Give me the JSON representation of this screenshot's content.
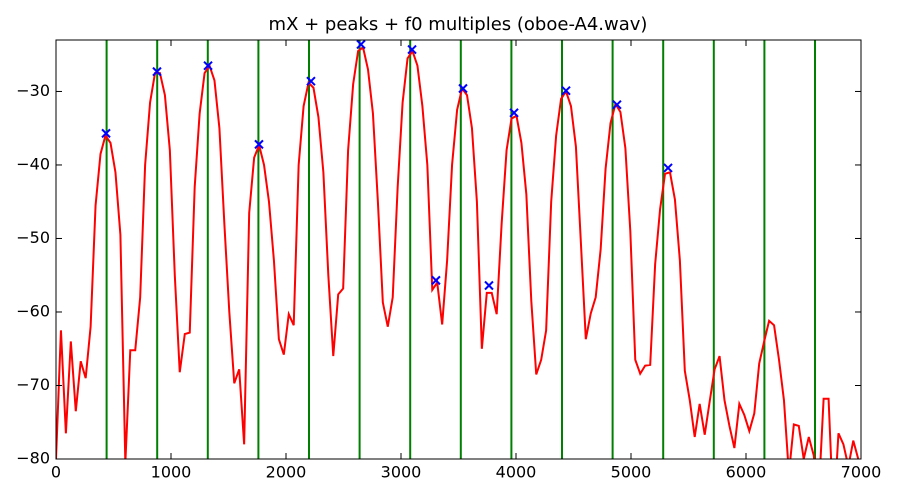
{
  "chart_data": {
    "type": "line",
    "title": "mX + peaks + f0 multiples (oboe-A4.wav)",
    "xlim": [
      0,
      7000
    ],
    "ylim": [
      -80,
      -23
    ],
    "xticks": [
      0,
      1000,
      2000,
      3000,
      4000,
      5000,
      6000,
      7000
    ],
    "yticks": [
      {
        "value": -80,
        "label": "−80"
      },
      {
        "value": -70,
        "label": "−70"
      },
      {
        "value": -60,
        "label": "−60"
      },
      {
        "value": -50,
        "label": "−50"
      },
      {
        "value": -40,
        "label": "−40"
      },
      {
        "value": -30,
        "label": "−30"
      }
    ],
    "series": [
      {
        "type": "vline",
        "color": "#008000",
        "x": [
          440,
          880,
          1320,
          1760,
          2200,
          2640,
          3080,
          3520,
          3960,
          4400,
          4840,
          5280,
          5720,
          6160,
          6600
        ]
      },
      {
        "type": "line",
        "color": "#ff0000",
        "x": [
          0,
          43,
          86,
          129,
          172,
          215,
          258,
          301,
          344,
          387,
          430,
          474,
          517,
          560,
          603,
          646,
          689,
          732,
          775,
          818,
          861,
          904,
          947,
          990,
          1033,
          1076,
          1120,
          1163,
          1206,
          1249,
          1292,
          1335,
          1378,
          1421,
          1464,
          1507,
          1550,
          1593,
          1636,
          1680,
          1723,
          1766,
          1809,
          1852,
          1895,
          1938,
          1981,
          2024,
          2067,
          2110,
          2153,
          2196,
          2239,
          2282,
          2325,
          2368,
          2411,
          2454,
          2497,
          2540,
          2584,
          2627,
          2670,
          2713,
          2756,
          2799,
          2842,
          2885,
          2928,
          2971,
          3014,
          3057,
          3100,
          3143,
          3186,
          3229,
          3272,
          3315,
          3358,
          3401,
          3444,
          3488,
          3531,
          3574,
          3617,
          3660,
          3703,
          3746,
          3789,
          3832,
          3875,
          3918,
          3961,
          4004,
          4047,
          4090,
          4133,
          4176,
          4219,
          4262,
          4306,
          4349,
          4392,
          4435,
          4478,
          4521,
          4564,
          4607,
          4650,
          4693,
          4736,
          4779,
          4822,
          4865,
          4908,
          4951,
          4994,
          5037,
          5080,
          5123,
          5167,
          5210,
          5253,
          5296,
          5339,
          5382,
          5425,
          5468,
          5511,
          5554,
          5597,
          5641,
          5684,
          5727,
          5770,
          5813,
          5856,
          5899,
          5942,
          5985,
          6029,
          6072,
          6115,
          6158,
          6201,
          6244,
          6287,
          6330,
          6373,
          6416,
          6459,
          6502,
          6546,
          6589,
          6632,
          6675,
          6718,
          6761,
          6804,
          6847,
          6890,
          6933,
          6976
        ],
        "values": [
          -80,
          -62.5,
          -76.5,
          -64,
          -73.5,
          -66.7,
          -69,
          -62,
          -45.5,
          -38.5,
          -36,
          -37,
          -41,
          -49.5,
          -80.5,
          -65.2,
          -65.2,
          -58,
          -40,
          -31.5,
          -27.5,
          -27.5,
          -30.5,
          -38,
          -55,
          -68.2,
          -63,
          -62.8,
          -43,
          -33,
          -27.5,
          -26.5,
          -28.5,
          -35,
          -48,
          -60,
          -69.7,
          -67.8,
          -78,
          -46.5,
          -39,
          -37.3,
          -40,
          -45,
          -53,
          -63.7,
          -65.8,
          -60.3,
          -61.8,
          -40,
          -32,
          -28.8,
          -29.5,
          -33.5,
          -41,
          -55,
          -66,
          -57.6,
          -56.8,
          -38,
          -29,
          -24.5,
          -24,
          -27,
          -33,
          -45,
          -58.7,
          -62,
          -58,
          -43,
          -31.5,
          -25.5,
          -24.5,
          -26.5,
          -32,
          -40,
          -57,
          -56,
          -61.7,
          -53,
          -40,
          -32.5,
          -29.6,
          -30.5,
          -35,
          -45,
          -65,
          -57.4,
          -57.4,
          -60.3,
          -48,
          -38,
          -33.7,
          -33.3,
          -37,
          -44,
          -58.5,
          -68.5,
          -66.5,
          -62.5,
          -45,
          -36,
          -31,
          -30,
          -32,
          -37.5,
          -50.5,
          -63.7,
          -60.2,
          -58,
          -51.5,
          -40.5,
          -34.3,
          -31.7,
          -32.8,
          -37.7,
          -49,
          -66.5,
          -68.4,
          -67.3,
          -67.2,
          -53.5,
          -46,
          -41.2,
          -41,
          -44.7,
          -53,
          -68,
          -72,
          -77,
          -72.5,
          -76.7,
          -72.2,
          -67.8,
          -66,
          -72,
          -75.5,
          -78.5,
          -72.5,
          -74,
          -76.2,
          -73.8,
          -67,
          -64,
          -61.2,
          -61.8,
          -66.5,
          -72,
          -82,
          -75.3,
          -75.5,
          -80,
          -77,
          -79.5,
          -85,
          -71.8,
          -71.8,
          -88,
          -76.5,
          -78,
          -81,
          -77.5,
          -80
        ]
      },
      {
        "type": "scatter",
        "color": "#0000ff",
        "x": [
          435,
          878,
          1322,
          1765,
          2217,
          2652,
          3096,
          3304,
          3539,
          3765,
          3983,
          4435,
          4878,
          5322
        ],
        "values": [
          -35.7,
          -27.3,
          -26.5,
          -37.2,
          -28.6,
          -23.6,
          -24.3,
          -55.7,
          -29.6,
          -56.4,
          -32.9,
          -29.9,
          -31.8,
          -40.4
        ]
      }
    ]
  }
}
